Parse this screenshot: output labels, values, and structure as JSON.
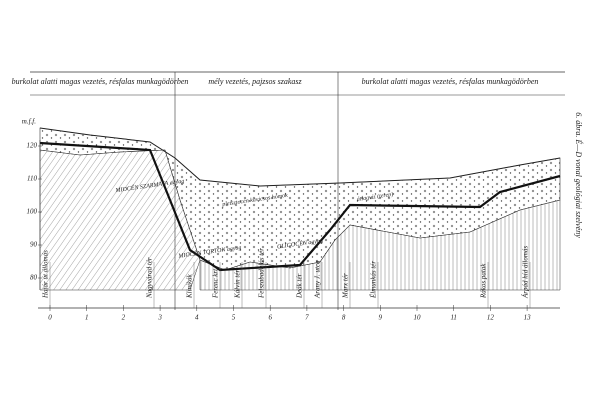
{
  "header": {
    "sections": [
      "burkolat alatti magas vezetés, résfalas munkagödörben",
      "mély vezetés, pajzsos szakasz",
      "burkolat alatti magas vezetés, résfalas munkagödörben"
    ]
  },
  "y_axis": {
    "unit": "m.f.f.",
    "ticks": [
      120,
      110,
      100,
      90,
      80
    ]
  },
  "x_axis": {
    "ticks": [
      0,
      1,
      2,
      3,
      4,
      5,
      6,
      7,
      8,
      9,
      10,
      11,
      12,
      13
    ]
  },
  "stations": [
    "Határ út állomás",
    "Nagyvárad tér",
    "Klinikák",
    "Ferenc krt.",
    "Kálvin tér",
    "Felszabadulás tér",
    "Deák tér",
    "Arany J. utca",
    "Marx tér",
    "Élmunkás tér",
    "Rákos patak",
    "Árpád híd állomás"
  ],
  "layers": [
    "MIOCÉN SZARMATA agyag",
    "MIOCÉN TORTON agyag",
    "pleisztocén kavicsos homok",
    "OLIGOCÉN agyag",
    "átlagvíz (terep)"
  ],
  "caption": "6. ábra. É—D vonal geológiai szelvény"
}
